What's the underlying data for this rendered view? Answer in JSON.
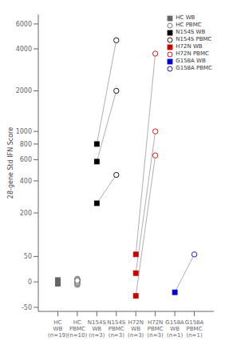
{
  "chart_data": {
    "type": "scatter",
    "categories": [
      "HC\nWB\n(n=19)",
      "HC\nPBMC\n(n=10)",
      "N154S\nWB\n(n=3)",
      "N154S\nPBMC\n(n=3)",
      "H72N\nWB\n(n=3)",
      "H72N\nPBMC\n(n=3)",
      "G158A\nWB\n(n=1)",
      "G158A\nPBMC\n(n=1)"
    ],
    "y_label": "28-gene Std IFN Score",
    "ylim": [
      -60,
      7000
    ],
    "yticks": [
      -50,
      0,
      50,
      200,
      400,
      600,
      800,
      1000,
      2000,
      4000,
      6000
    ],
    "legend": "upper right",
    "series": [
      {
        "name": "HC WB",
        "color": "#666666",
        "marker": "square",
        "x": [
          "HC\nWB\n(n=19)",
          "HC\nWB\n(n=19)",
          "HC\nWB\n(n=19)",
          "HC\nWB\n(n=19)",
          "HC\nWB\n(n=19)",
          "HC\nWB\n(n=19)",
          "HC\nWB\n(n=19)",
          "HC\nWB\n(n=19)",
          "HC\nWB\n(n=19)",
          "HC\nWB\n(n=19)",
          "HC\nWB\n(n=19)",
          "HC\nWB\n(n=19)",
          "HC\nWB\n(n=19)",
          "HC\nWB\n(n=19)",
          "HC\nWB\n(n=19)",
          "HC\nWB\n(n=19)",
          "HC\nWB\n(n=19)",
          "HC\nWB\n(n=19)",
          "HC\nWB\n(n=19)"
        ],
        "values": [
          -3,
          -2,
          -1,
          0,
          1,
          2,
          3,
          -1,
          0,
          1,
          -2,
          0,
          1,
          -1,
          0,
          2,
          -1,
          1,
          0
        ]
      },
      {
        "name": "HC PBMC",
        "color": "#666666",
        "marker": "hollow_circle",
        "x": [
          "HC\nPBMC\n(n=10)",
          "HC\nPBMC\n(n=10)",
          "HC\nPBMC\n(n=10)",
          "HC\nPBMC\n(n=10)",
          "HC\nPBMC\n(n=10)",
          "HC\nPBMC\n(n=10)",
          "HC\nPBMC\n(n=10)",
          "HC\nPBMC\n(n=10)",
          "HC\nPBMC\n(n=10)",
          "HC\nPBMC\n(n=10)"
        ],
        "values": [
          -5,
          -3,
          0,
          2,
          5,
          3,
          -2,
          0,
          4,
          2
        ]
      },
      {
        "name": "N154S WB",
        "color": "#000000",
        "marker": "square",
        "x": [
          "N154S\nWB\n(n=3)",
          "N154S\nWB\n(n=3)",
          "N154S\nWB\n(n=3)"
        ],
        "values": [
          250,
          580,
          800
        ]
      },
      {
        "name": "N154S PBMC",
        "color": "#000000",
        "marker": "hollow_circle",
        "x": [
          "N154S\nPBMC\n(n=3)",
          "N154S\nPBMC\n(n=3)",
          "N154S\nPBMC\n(n=3)"
        ],
        "values": [
          450,
          2000,
          4600
        ]
      },
      {
        "name": "H72N WB",
        "color": "#cc0000",
        "marker": "square",
        "x": [
          "H72N\nWB\n(n=3)",
          "H72N\nWB\n(n=3)",
          "H72N\nWB\n(n=3)"
        ],
        "values": [
          -25,
          15,
          55
        ]
      },
      {
        "name": "H72N PBMC",
        "color": "#cc0000",
        "marker": "hollow_circle",
        "x": [
          "H72N\nPBMC\n(n=3)",
          "H72N\nPBMC\n(n=3)",
          "H72N\nPBMC\n(n=3)"
        ],
        "values": [
          650,
          1000,
          3700
        ]
      },
      {
        "name": "G158A WB",
        "color": "#0000cc",
        "marker": "square",
        "x": [
          "G158A\nWB\n(n=1)"
        ],
        "values": [
          -18
        ]
      },
      {
        "name": "G158A PBMC",
        "color": "#0000cc",
        "marker": "hollow_circle",
        "x": [
          "G158A\nPBMC\n(n=1)"
        ],
        "values": [
          55
        ]
      }
    ],
    "pairs": [
      [
        "N154S WB",
        "N154S PBMC"
      ],
      [
        "H72N WB",
        "H72N PBMC"
      ],
      [
        "G158A WB",
        "G158A PBMC"
      ]
    ]
  }
}
